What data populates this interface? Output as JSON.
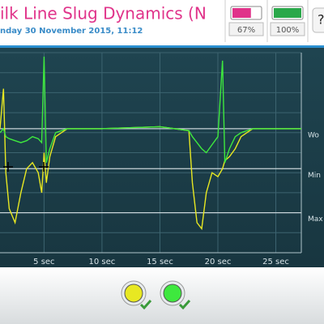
{
  "header": {
    "title": "ilk Line Slug Dynamics (N",
    "subtitle": "nday 30 November 2015, 11:12"
  },
  "battery": [
    {
      "value": 67,
      "label": "67%",
      "color": "#e0338a"
    },
    {
      "value": 100,
      "label": "100%",
      "color": "#2aa84a"
    }
  ],
  "chart_data": {
    "type": "line",
    "x": [
      1.2,
      1.5,
      1.7,
      2,
      2.5,
      3,
      3.5,
      4,
      4.5,
      4.8,
      5,
      5.2,
      5.5,
      6,
      7,
      10,
      15,
      17.5,
      17.8,
      18.2,
      18.6,
      19,
      19.5,
      20,
      20.4,
      20.6,
      21,
      21.5,
      22,
      23,
      25,
      27.2
    ],
    "series": [
      {
        "color": "#e8e822",
        "values": [
          62,
          82,
          40,
          22,
          15,
          30,
          42,
          45,
          40,
          30,
          50,
          35,
          48,
          58,
          62,
          62,
          63,
          61,
          35,
          15,
          12,
          30,
          40,
          38,
          42,
          46,
          48,
          52,
          58,
          62,
          62,
          62
        ]
      },
      {
        "color": "#3ee83e",
        "values": [
          60,
          62,
          58,
          57,
          56,
          55,
          56,
          58,
          57,
          55,
          98,
          45,
          52,
          60,
          62,
          62,
          63,
          61,
          58,
          55,
          52,
          50,
          54,
          58,
          96,
          45,
          52,
          58,
          60,
          62,
          62,
          62
        ]
      }
    ],
    "xlim": [
      1.2,
      27.2
    ],
    "xticks": [
      {
        "value": 5,
        "label": "5 sec"
      },
      {
        "value": 10,
        "label": "10 sec"
      },
      {
        "value": 15,
        "label": "15 sec"
      },
      {
        "value": 20,
        "label": "20 sec"
      },
      {
        "value": 25,
        "label": "25 sec"
      }
    ],
    "ylim": [
      0,
      100
    ],
    "yticks": [
      0,
      10,
      20,
      30,
      40,
      50,
      60,
      70,
      80,
      90,
      100
    ],
    "grid": true,
    "thresholds": [
      {
        "value": 62,
        "label": "Wo"
      },
      {
        "value": 42,
        "label": "Min"
      },
      {
        "value": 20,
        "label": "Max"
      }
    ]
  }
}
